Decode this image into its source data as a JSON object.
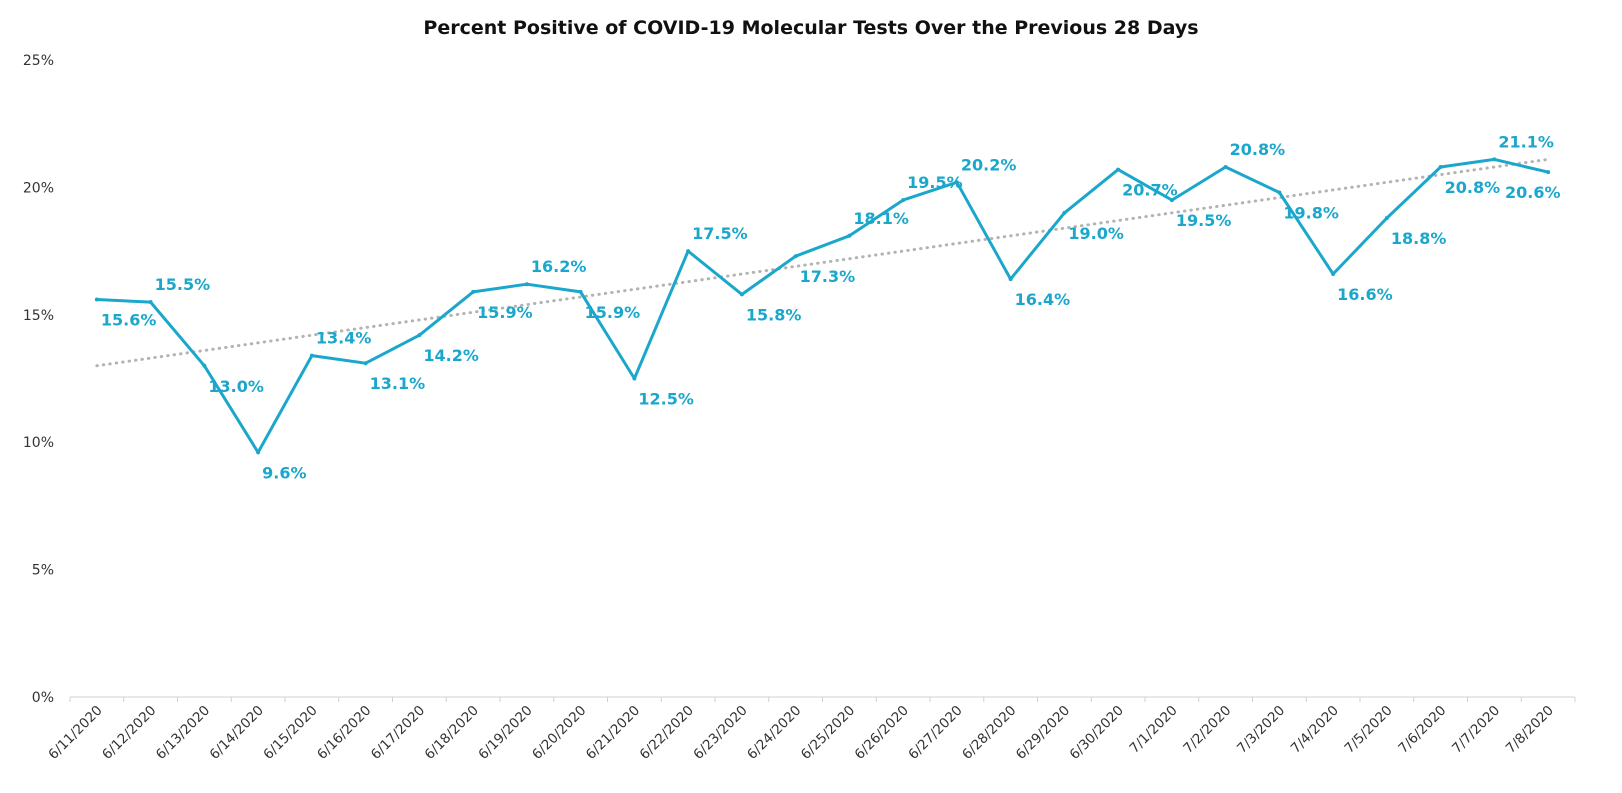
{
  "chart_data": {
    "type": "line",
    "title": "Percent Positive of COVID-19 Molecular Tests Over the Previous 28 Days",
    "xlabel": "",
    "ylabel": "",
    "ylim": [
      0,
      25
    ],
    "y_ticks": [
      0,
      5,
      10,
      15,
      20,
      25
    ],
    "y_tick_labels": [
      "0%",
      "5%",
      "10%",
      "15%",
      "20%",
      "25%"
    ],
    "grid": false,
    "legend": "none",
    "colors": {
      "series": "#1ba7cc",
      "trend": "#b3b3b3",
      "axis": "#d0d0d0",
      "text": "#333333"
    },
    "categories": [
      "6/11/2020",
      "6/12/2020",
      "6/13/2020",
      "6/14/2020",
      "6/15/2020",
      "6/16/2020",
      "6/17/2020",
      "6/18/2020",
      "6/19/2020",
      "6/20/2020",
      "6/21/2020",
      "6/22/2020",
      "6/23/2020",
      "6/24/2020",
      "6/25/2020",
      "6/26/2020",
      "6/27/2020",
      "6/28/2020",
      "6/29/2020",
      "6/30/2020",
      "7/1/2020",
      "7/2/2020",
      "7/3/2020",
      "7/4/2020",
      "7/5/2020",
      "7/6/2020",
      "7/7/2020",
      "7/8/2020"
    ],
    "series": [
      {
        "values": [
          15.6,
          15.5,
          13.0,
          9.6,
          13.4,
          13.1,
          14.2,
          15.9,
          16.2,
          15.9,
          12.5,
          17.5,
          15.8,
          17.3,
          18.1,
          19.5,
          20.2,
          16.4,
          19.0,
          20.7,
          19.5,
          20.8,
          19.8,
          16.6,
          18.8,
          20.8,
          21.1,
          20.6
        ],
        "labels": [
          "15.6%",
          "15.5%",
          "13.0%",
          "9.6%",
          "13.4%",
          "13.1%",
          "14.2%",
          "15.9%",
          "16.2%",
          "15.9%",
          "12.5%",
          "17.5%",
          "15.8%",
          "17.3%",
          "18.1%",
          "19.5%",
          "20.2%",
          "16.4%",
          "19.0%",
          "20.7%",
          "19.5%",
          "20.8%",
          "19.8%",
          "16.6%",
          "18.8%",
          "20.8%",
          "21.1%",
          "20.6%"
        ]
      }
    ],
    "trendline": {
      "type": "linear",
      "style": "dotted",
      "start": 13.0,
      "end": 21.1
    }
  }
}
